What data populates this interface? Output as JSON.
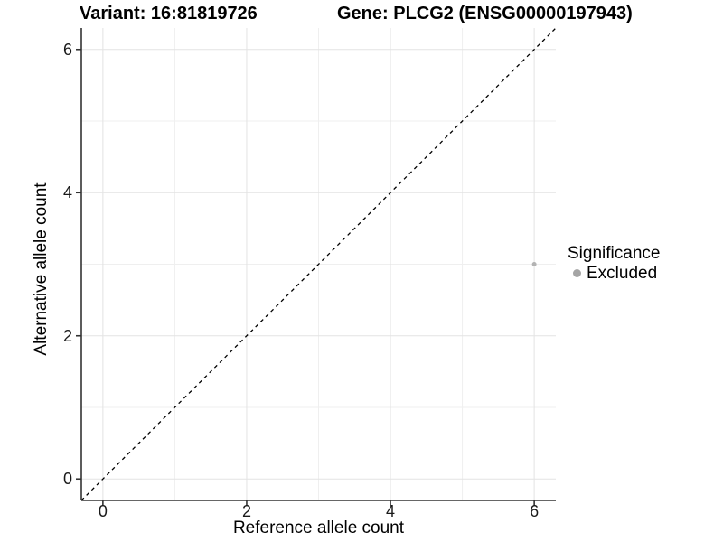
{
  "chart_data": {
    "type": "scatter",
    "title_variant": "Variant: 16:81819726",
    "title_gene": "Gene: PLCG2 (ENSG00000197943)",
    "xlabel": "Reference allele count",
    "ylabel": "Alternative allele count",
    "xlim": [
      -0.3,
      6.3
    ],
    "ylim": [
      -0.3,
      6.3
    ],
    "x_ticks": [
      0,
      2,
      4,
      6
    ],
    "y_ticks": [
      0,
      2,
      4,
      6
    ],
    "x_minor_ticks": [
      1,
      3,
      5
    ],
    "y_minor_ticks": [
      1,
      3,
      5
    ],
    "grid": true,
    "identity_line": {
      "slope": 1,
      "intercept": 0,
      "style": "dashed",
      "color": "#000000"
    },
    "points": [
      {
        "x": 6,
        "y": 3,
        "significance": "Excluded",
        "color": "#b3b3b3",
        "radius": 2.5
      }
    ],
    "legend": {
      "title": "Significance",
      "position": "right",
      "items": [
        {
          "label": "Excluded",
          "color": "#a5a5a5"
        }
      ]
    },
    "colors": {
      "grid_major": "#e3e3e3",
      "grid_minor": "#efefef",
      "axis_line": "#333333",
      "background": "#ffffff"
    }
  }
}
